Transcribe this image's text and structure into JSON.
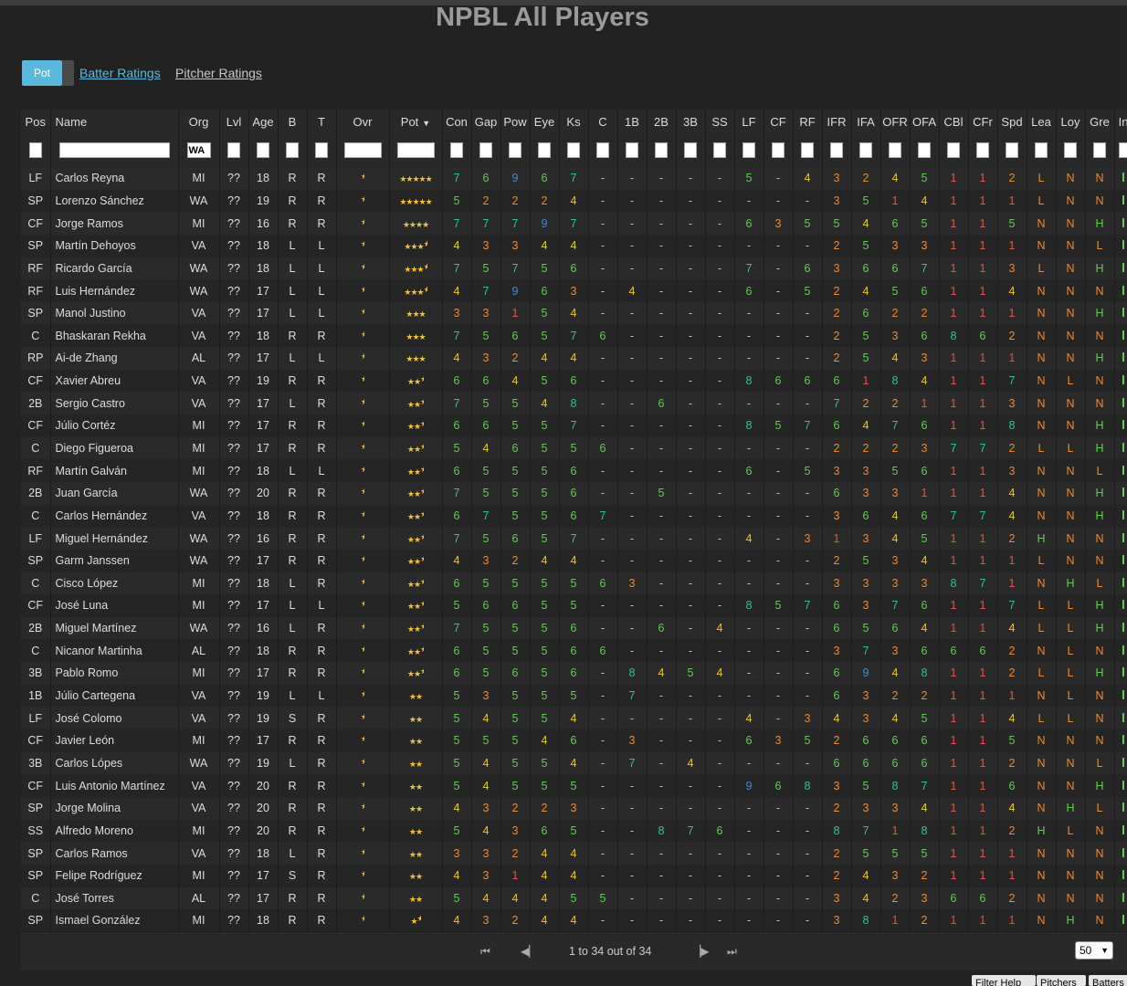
{
  "page_title": "NPBL All Players",
  "view_toggle": {
    "label": "Pot"
  },
  "links": {
    "batter": "Batter Ratings",
    "pitcher": "Pitcher Ratings"
  },
  "columns": [
    "Pos",
    "Name",
    "Org",
    "Lvl",
    "Age",
    "B",
    "T",
    "Ovr",
    "Pot",
    "Con",
    "Gap",
    "Pow",
    "Eye",
    "Ks",
    "C",
    "1B",
    "2B",
    "3B",
    "SS",
    "LF",
    "CF",
    "RF",
    "IFR",
    "IFA",
    "OFR",
    "OFA",
    "CBl",
    "CFr",
    "Spd",
    "Lea",
    "Loy",
    "Gre",
    "In"
  ],
  "sorted_column": "Pot",
  "filters": {
    "org": "WA"
  },
  "rows": [
    {
      "pos": "LF",
      "name": "Carlos Reyna",
      "org": "MI",
      "lvl": "??",
      "age": "18",
      "b": "R",
      "t": "R",
      "pot": 5,
      "r": [
        "7",
        "6",
        "9",
        "6",
        "7",
        "-",
        "-",
        "-",
        "-",
        "-",
        "5",
        "-",
        "4",
        "3",
        "2",
        "4",
        "5",
        "1",
        "1",
        "2",
        "L",
        "N",
        "N"
      ]
    },
    {
      "pos": "SP",
      "name": "Lorenzo Sánchez",
      "org": "WA",
      "lvl": "??",
      "age": "19",
      "b": "R",
      "t": "R",
      "pot": 5,
      "r": [
        "5",
        "2",
        "2",
        "2",
        "4",
        "-",
        "-",
        "-",
        "-",
        "-",
        "-",
        "-",
        "-",
        "3",
        "5",
        "1",
        "4",
        "1",
        "1",
        "1",
        "L",
        "N",
        "N"
      ]
    },
    {
      "pos": "CF",
      "name": "Jorge Ramos",
      "org": "MI",
      "lvl": "??",
      "age": "16",
      "b": "R",
      "t": "R",
      "pot": 4,
      "r": [
        "7",
        "7",
        "7",
        "9",
        "7",
        "-",
        "-",
        "-",
        "-",
        "-",
        "6",
        "3",
        "5",
        "5",
        "4",
        "6",
        "5",
        "1",
        "1",
        "5",
        "N",
        "N",
        "H"
      ]
    },
    {
      "pos": "SP",
      "name": "Martín Dehoyos",
      "org": "VA",
      "lvl": "??",
      "age": "18",
      "b": "L",
      "t": "L",
      "pot": 3.5,
      "r": [
        "4",
        "3",
        "3",
        "4",
        "4",
        "-",
        "-",
        "-",
        "-",
        "-",
        "-",
        "-",
        "-",
        "2",
        "5",
        "3",
        "3",
        "1",
        "1",
        "1",
        "N",
        "N",
        "L"
      ]
    },
    {
      "pos": "RF",
      "name": "Ricardo García",
      "org": "WA",
      "lvl": "??",
      "age": "18",
      "b": "L",
      "t": "L",
      "pot": 3.5,
      "r": [
        "7",
        "5",
        "7",
        "5",
        "6",
        "-",
        "-",
        "-",
        "-",
        "-",
        "7",
        "-",
        "6",
        "3",
        "6",
        "6",
        "7",
        "1",
        "1",
        "3",
        "L",
        "N",
        "H"
      ]
    },
    {
      "pos": "RF",
      "name": "Luis Hernández",
      "org": "WA",
      "lvl": "??",
      "age": "17",
      "b": "L",
      "t": "L",
      "pot": 3.5,
      "r": [
        "4",
        "7",
        "9",
        "6",
        "3",
        "-",
        "4",
        "-",
        "-",
        "-",
        "6",
        "-",
        "5",
        "2",
        "4",
        "5",
        "6",
        "1",
        "1",
        "4",
        "N",
        "N",
        "N"
      ]
    },
    {
      "pos": "SP",
      "name": "Manol Justino",
      "org": "VA",
      "lvl": "??",
      "age": "17",
      "b": "L",
      "t": "L",
      "pot": 3,
      "r": [
        "3",
        "3",
        "1",
        "5",
        "4",
        "-",
        "-",
        "-",
        "-",
        "-",
        "-",
        "-",
        "-",
        "2",
        "6",
        "2",
        "2",
        "1",
        "1",
        "1",
        "N",
        "N",
        "H"
      ]
    },
    {
      "pos": "C",
      "name": "Bhaskaran Rekha",
      "org": "VA",
      "lvl": "??",
      "age": "18",
      "b": "R",
      "t": "R",
      "pot": 3,
      "r": [
        "7",
        "5",
        "6",
        "5",
        "7",
        "6",
        "-",
        "-",
        "-",
        "-",
        "-",
        "-",
        "-",
        "2",
        "5",
        "3",
        "6",
        "8",
        "6",
        "2",
        "N",
        "N",
        "N"
      ]
    },
    {
      "pos": "RP",
      "name": "Ai-de Zhang",
      "org": "AL",
      "lvl": "??",
      "age": "17",
      "b": "L",
      "t": "L",
      "pot": 3,
      "r": [
        "4",
        "3",
        "2",
        "4",
        "4",
        "-",
        "-",
        "-",
        "-",
        "-",
        "-",
        "-",
        "-",
        "2",
        "5",
        "4",
        "3",
        "1",
        "1",
        "1",
        "N",
        "N",
        "H"
      ]
    },
    {
      "pos": "CF",
      "name": "Xavier Abreu",
      "org": "VA",
      "lvl": "??",
      "age": "19",
      "b": "R",
      "t": "R",
      "pot": 2.5,
      "r": [
        "6",
        "6",
        "4",
        "5",
        "6",
        "-",
        "-",
        "-",
        "-",
        "-",
        "8",
        "6",
        "6",
        "6",
        "1",
        "8",
        "4",
        "1",
        "1",
        "7",
        "N",
        "L",
        "N"
      ]
    },
    {
      "pos": "2B",
      "name": "Sergio Castro",
      "org": "VA",
      "lvl": "??",
      "age": "17",
      "b": "L",
      "t": "R",
      "pot": 2.5,
      "r": [
        "7",
        "5",
        "5",
        "4",
        "8",
        "-",
        "-",
        "6",
        "-",
        "-",
        "-",
        "-",
        "-",
        "7",
        "2",
        "2",
        "1",
        "1",
        "1",
        "3",
        "N",
        "N",
        "N"
      ]
    },
    {
      "pos": "CF",
      "name": "Júlio Cortéz",
      "org": "MI",
      "lvl": "??",
      "age": "17",
      "b": "R",
      "t": "R",
      "pot": 2.5,
      "r": [
        "6",
        "6",
        "5",
        "5",
        "7",
        "-",
        "-",
        "-",
        "-",
        "-",
        "8",
        "5",
        "7",
        "6",
        "4",
        "7",
        "6",
        "1",
        "1",
        "8",
        "N",
        "N",
        "H"
      ]
    },
    {
      "pos": "C",
      "name": "Diego Figueroa",
      "org": "MI",
      "lvl": "??",
      "age": "17",
      "b": "R",
      "t": "R",
      "pot": 2.5,
      "r": [
        "5",
        "4",
        "6",
        "5",
        "5",
        "6",
        "-",
        "-",
        "-",
        "-",
        "-",
        "-",
        "-",
        "2",
        "2",
        "2",
        "3",
        "7",
        "7",
        "2",
        "L",
        "L",
        "H"
      ]
    },
    {
      "pos": "RF",
      "name": "Martín Galván",
      "org": "MI",
      "lvl": "??",
      "age": "18",
      "b": "L",
      "t": "L",
      "pot": 2.5,
      "r": [
        "6",
        "5",
        "5",
        "5",
        "6",
        "-",
        "-",
        "-",
        "-",
        "-",
        "6",
        "-",
        "5",
        "3",
        "3",
        "5",
        "6",
        "1",
        "1",
        "3",
        "N",
        "N",
        "L"
      ]
    },
    {
      "pos": "2B",
      "name": "Juan García",
      "org": "WA",
      "lvl": "??",
      "age": "20",
      "b": "R",
      "t": "R",
      "pot": 2.5,
      "r": [
        "7",
        "5",
        "5",
        "5",
        "6",
        "-",
        "-",
        "5",
        "-",
        "-",
        "-",
        "-",
        "-",
        "6",
        "3",
        "3",
        "1",
        "1",
        "1",
        "4",
        "N",
        "N",
        "H"
      ]
    },
    {
      "pos": "C",
      "name": "Carlos Hernández",
      "org": "VA",
      "lvl": "??",
      "age": "18",
      "b": "R",
      "t": "R",
      "pot": 2.5,
      "r": [
        "6",
        "7",
        "5",
        "5",
        "6",
        "7",
        "-",
        "-",
        "-",
        "-",
        "-",
        "-",
        "-",
        "3",
        "6",
        "4",
        "6",
        "7",
        "7",
        "4",
        "N",
        "N",
        "H"
      ]
    },
    {
      "pos": "LF",
      "name": "Miguel Hernández",
      "org": "WA",
      "lvl": "??",
      "age": "16",
      "b": "R",
      "t": "R",
      "pot": 2.5,
      "r": [
        "7",
        "5",
        "6",
        "5",
        "7",
        "-",
        "-",
        "-",
        "-",
        "-",
        "4",
        "-",
        "3",
        "1",
        "3",
        "4",
        "5",
        "1",
        "1",
        "2",
        "H",
        "N",
        "N"
      ]
    },
    {
      "pos": "SP",
      "name": "Garm Janssen",
      "org": "WA",
      "lvl": "??",
      "age": "17",
      "b": "R",
      "t": "R",
      "pot": 2.5,
      "r": [
        "4",
        "3",
        "2",
        "4",
        "4",
        "-",
        "-",
        "-",
        "-",
        "-",
        "-",
        "-",
        "-",
        "2",
        "5",
        "3",
        "4",
        "1",
        "1",
        "1",
        "L",
        "N",
        "N"
      ]
    },
    {
      "pos": "C",
      "name": "Cisco López",
      "org": "MI",
      "lvl": "??",
      "age": "18",
      "b": "L",
      "t": "R",
      "pot": 2.5,
      "r": [
        "6",
        "5",
        "5",
        "5",
        "5",
        "6",
        "3",
        "-",
        "-",
        "-",
        "-",
        "-",
        "-",
        "3",
        "3",
        "3",
        "3",
        "8",
        "7",
        "1",
        "N",
        "H",
        "L"
      ]
    },
    {
      "pos": "CF",
      "name": "José Luna",
      "org": "MI",
      "lvl": "??",
      "age": "17",
      "b": "L",
      "t": "L",
      "pot": 2.5,
      "r": [
        "5",
        "6",
        "6",
        "5",
        "5",
        "-",
        "-",
        "-",
        "-",
        "-",
        "8",
        "5",
        "7",
        "6",
        "3",
        "7",
        "6",
        "1",
        "1",
        "7",
        "L",
        "L",
        "H"
      ]
    },
    {
      "pos": "2B",
      "name": "Miguel Martínez",
      "org": "WA",
      "lvl": "??",
      "age": "16",
      "b": "L",
      "t": "R",
      "pot": 2.5,
      "r": [
        "7",
        "5",
        "5",
        "5",
        "6",
        "-",
        "-",
        "6",
        "-",
        "4",
        "-",
        "-",
        "-",
        "6",
        "5",
        "6",
        "4",
        "1",
        "1",
        "4",
        "L",
        "L",
        "H"
      ]
    },
    {
      "pos": "C",
      "name": "Nicanor Martinha",
      "org": "AL",
      "lvl": "??",
      "age": "18",
      "b": "R",
      "t": "R",
      "pot": 2.5,
      "r": [
        "6",
        "5",
        "5",
        "5",
        "6",
        "6",
        "-",
        "-",
        "-",
        "-",
        "-",
        "-",
        "-",
        "3",
        "7",
        "3",
        "6",
        "6",
        "6",
        "2",
        "N",
        "L",
        "N"
      ]
    },
    {
      "pos": "3B",
      "name": "Pablo Romo",
      "org": "MI",
      "lvl": "??",
      "age": "17",
      "b": "R",
      "t": "R",
      "pot": 2.5,
      "r": [
        "6",
        "5",
        "6",
        "5",
        "6",
        "-",
        "8",
        "4",
        "5",
        "4",
        "-",
        "-",
        "-",
        "6",
        "9",
        "4",
        "8",
        "1",
        "1",
        "2",
        "L",
        "L",
        "H"
      ]
    },
    {
      "pos": "1B",
      "name": "Júlio Cartegena",
      "org": "VA",
      "lvl": "??",
      "age": "19",
      "b": "L",
      "t": "L",
      "pot": 2,
      "r": [
        "5",
        "3",
        "5",
        "5",
        "5",
        "-",
        "7",
        "-",
        "-",
        "-",
        "-",
        "-",
        "-",
        "6",
        "3",
        "2",
        "2",
        "1",
        "1",
        "1",
        "N",
        "L",
        "N"
      ]
    },
    {
      "pos": "LF",
      "name": "José Colomo",
      "org": "VA",
      "lvl": "??",
      "age": "19",
      "b": "S",
      "t": "R",
      "pot": 2,
      "r": [
        "5",
        "4",
        "5",
        "5",
        "4",
        "-",
        "-",
        "-",
        "-",
        "-",
        "4",
        "-",
        "3",
        "4",
        "3",
        "4",
        "5",
        "1",
        "1",
        "4",
        "L",
        "L",
        "N"
      ]
    },
    {
      "pos": "CF",
      "name": "Javier León",
      "org": "MI",
      "lvl": "??",
      "age": "17",
      "b": "R",
      "t": "R",
      "pot": 2,
      "r": [
        "5",
        "5",
        "5",
        "4",
        "6",
        "-",
        "3",
        "-",
        "-",
        "-",
        "6",
        "3",
        "5",
        "2",
        "6",
        "6",
        "6",
        "1",
        "1",
        "5",
        "N",
        "N",
        "N"
      ]
    },
    {
      "pos": "3B",
      "name": "Carlos Lópes",
      "org": "WA",
      "lvl": "??",
      "age": "19",
      "b": "L",
      "t": "R",
      "pot": 2,
      "r": [
        "5",
        "4",
        "5",
        "5",
        "4",
        "-",
        "7",
        "-",
        "4",
        "-",
        "-",
        "-",
        "-",
        "6",
        "6",
        "6",
        "6",
        "1",
        "1",
        "2",
        "N",
        "N",
        "L"
      ]
    },
    {
      "pos": "CF",
      "name": "Luis Antonio Martínez",
      "org": "VA",
      "lvl": "??",
      "age": "20",
      "b": "R",
      "t": "R",
      "pot": 2,
      "r": [
        "5",
        "4",
        "5",
        "5",
        "5",
        "-",
        "-",
        "-",
        "-",
        "-",
        "9",
        "6",
        "8",
        "3",
        "5",
        "8",
        "7",
        "1",
        "1",
        "6",
        "N",
        "N",
        "H"
      ]
    },
    {
      "pos": "SP",
      "name": "Jorge Molina",
      "org": "VA",
      "lvl": "??",
      "age": "20",
      "b": "R",
      "t": "R",
      "pot": 2,
      "r": [
        "4",
        "3",
        "2",
        "2",
        "3",
        "-",
        "-",
        "-",
        "-",
        "-",
        "-",
        "-",
        "-",
        "2",
        "3",
        "3",
        "4",
        "1",
        "1",
        "4",
        "N",
        "H",
        "L"
      ]
    },
    {
      "pos": "SS",
      "name": "Alfredo Moreno",
      "org": "MI",
      "lvl": "??",
      "age": "20",
      "b": "R",
      "t": "R",
      "pot": 2,
      "r": [
        "5",
        "4",
        "3",
        "6",
        "5",
        "-",
        "-",
        "8",
        "7",
        "6",
        "-",
        "-",
        "-",
        "8",
        "7",
        "1",
        "8",
        "1",
        "1",
        "2",
        "H",
        "L",
        "N"
      ]
    },
    {
      "pos": "SP",
      "name": "Carlos Ramos",
      "org": "VA",
      "lvl": "??",
      "age": "18",
      "b": "L",
      "t": "R",
      "pot": 2,
      "r": [
        "3",
        "3",
        "2",
        "4",
        "4",
        "-",
        "-",
        "-",
        "-",
        "-",
        "-",
        "-",
        "-",
        "2",
        "5",
        "5",
        "5",
        "1",
        "1",
        "1",
        "N",
        "N",
        "N"
      ]
    },
    {
      "pos": "SP",
      "name": "Felipe Rodríguez",
      "org": "MI",
      "lvl": "??",
      "age": "17",
      "b": "S",
      "t": "R",
      "pot": 2,
      "r": [
        "4",
        "3",
        "1",
        "4",
        "4",
        "-",
        "-",
        "-",
        "-",
        "-",
        "-",
        "-",
        "-",
        "2",
        "4",
        "3",
        "2",
        "1",
        "1",
        "1",
        "N",
        "N",
        "N"
      ]
    },
    {
      "pos": "C",
      "name": "José Torres",
      "org": "AL",
      "lvl": "??",
      "age": "17",
      "b": "R",
      "t": "R",
      "pot": 2,
      "r": [
        "5",
        "4",
        "4",
        "4",
        "5",
        "5",
        "-",
        "-",
        "-",
        "-",
        "-",
        "-",
        "-",
        "3",
        "4",
        "2",
        "3",
        "6",
        "6",
        "2",
        "N",
        "N",
        "N"
      ]
    },
    {
      "pos": "SP",
      "name": "Ismael González",
      "org": "MI",
      "lvl": "??",
      "age": "18",
      "b": "R",
      "t": "R",
      "pot": 1.5,
      "r": [
        "4",
        "3",
        "2",
        "4",
        "4",
        "-",
        "-",
        "-",
        "-",
        "-",
        "-",
        "-",
        "-",
        "3",
        "8",
        "1",
        "2",
        "1",
        "1",
        "1",
        "N",
        "H",
        "N"
      ]
    }
  ],
  "pager": {
    "info": "1 to 34 out of 34",
    "page_size": "50"
  },
  "bottom_buttons": [
    "Filter Help",
    "Pitchers",
    "Batters"
  ]
}
